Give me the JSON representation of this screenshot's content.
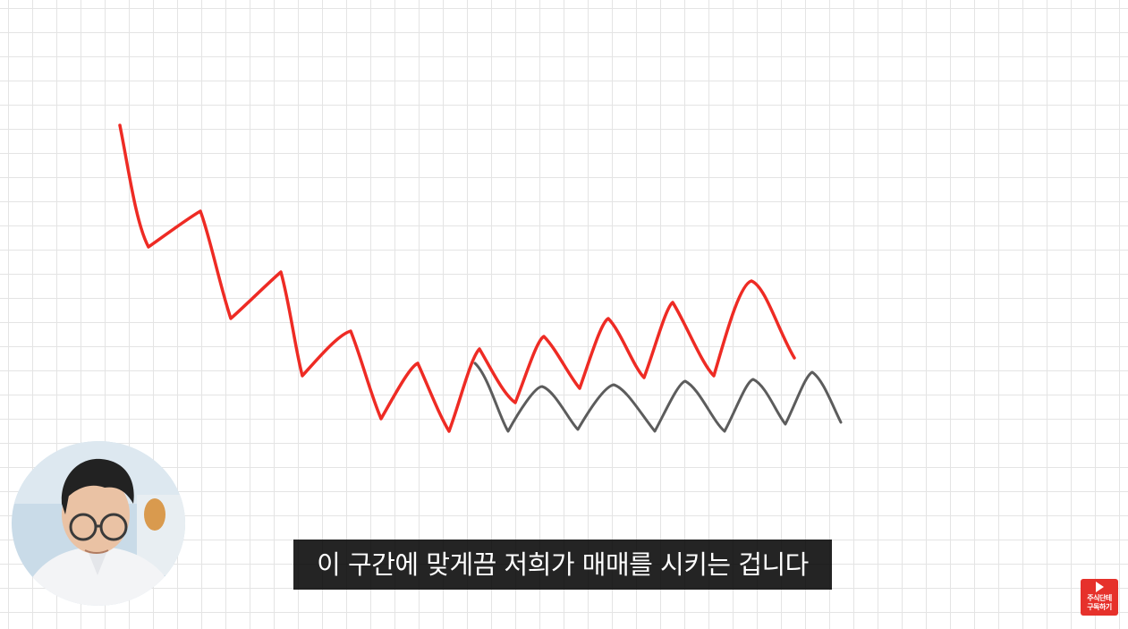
{
  "caption": {
    "text": "이 구간에 맞게끔 저희가 매매를 시키는 겁니다"
  },
  "drawing": {
    "grid": true,
    "lines": [
      {
        "name": "red-price-line",
        "color": "#ee2b24"
      },
      {
        "name": "gray-range-line",
        "color": "#5c5c5c"
      }
    ]
  },
  "presenter": {
    "icon": "presenter-webcam"
  },
  "subscribe_badge": {
    "line1": "주식단테",
    "line2": "구독하기",
    "icon": "play-icon",
    "color": "#e6312b"
  }
}
